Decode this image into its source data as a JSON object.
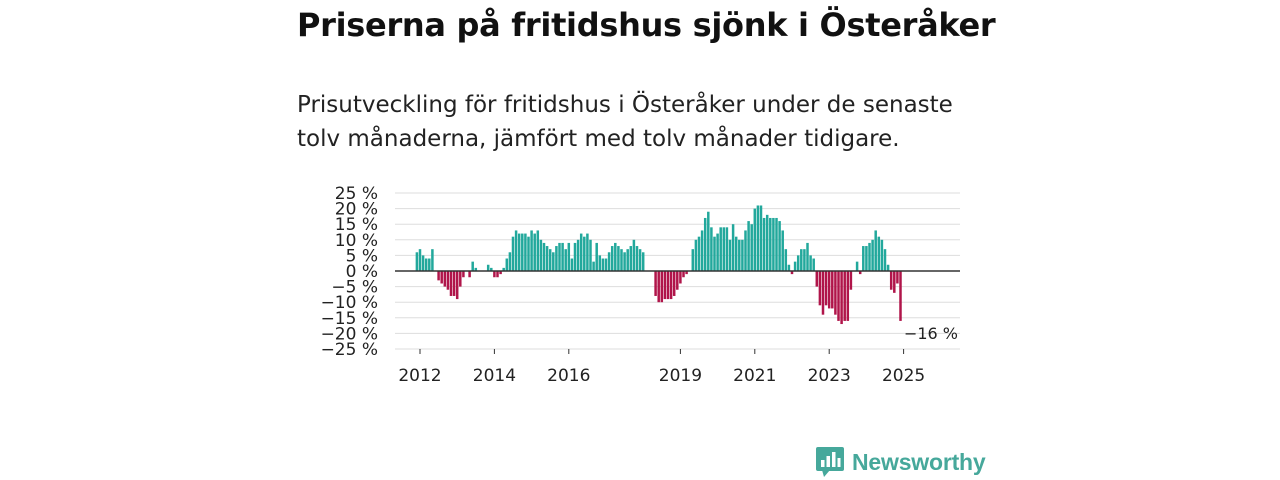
{
  "header": {
    "title": "Priserna på fritidshus sjönk i Österåker",
    "subtitle": "Prisutveckling för fritidshus i Österåker under de senaste tolv månaderna, jämfört med tolv månader tidigare."
  },
  "brand": {
    "name": "Newsworthy",
    "color": "#46a89b",
    "icon": "newsworthy-logo-icon"
  },
  "colors": {
    "positive": "#22a89c",
    "negative": "#b0154a",
    "zero_line": "#333333",
    "grid": "#dddddd"
  },
  "chart_data": {
    "type": "bar",
    "title": "Priserna på fritidshus sjönk i Österåker",
    "xlabel": "",
    "ylabel": "",
    "ylim": [
      -25,
      25
    ],
    "y_ticks": [
      25,
      20,
      15,
      10,
      5,
      0,
      -5,
      -10,
      -15,
      -20,
      -25
    ],
    "y_tick_labels": [
      "25 %",
      "20 %",
      "15 %",
      "10 %",
      "5 %",
      "0 %",
      "−5 %",
      "−10 %",
      "−15 %",
      "−20 %",
      "−25 %"
    ],
    "x_ticks": [
      {
        "year": 2012,
        "label": "2012"
      },
      {
        "year": 2014,
        "label": "2014"
      },
      {
        "year": 2016,
        "label": "2016"
      },
      {
        "year": 2019,
        "label": "2019"
      },
      {
        "year": 2021,
        "label": "2021"
      },
      {
        "year": 2023,
        "label": "2023"
      },
      {
        "year": 2025,
        "label": "2025"
      }
    ],
    "start_year": 2011,
    "start_month": 12,
    "unit": "%",
    "last_value_label": "−16 %",
    "values": [
      6,
      7,
      5,
      4,
      4,
      7,
      null,
      -3,
      -4,
      -5,
      -6,
      -8,
      -8,
      -9,
      -5,
      -2,
      null,
      -2,
      3,
      1,
      null,
      null,
      null,
      2,
      1,
      -2,
      -2,
      -1,
      1,
      4,
      6,
      11,
      13,
      12,
      12,
      12,
      11,
      13,
      12,
      13,
      10,
      9,
      8,
      7,
      6,
      8,
      9,
      9,
      7,
      9,
      4,
      9,
      10,
      12,
      11,
      12,
      10,
      3,
      9,
      5,
      4,
      4,
      6,
      8,
      9,
      8,
      7,
      6,
      7,
      8,
      10,
      8,
      7,
      6,
      null,
      null,
      null,
      -8,
      -10,
      -10,
      -9,
      -9,
      -9,
      -8,
      -6,
      -4,
      -2,
      -1,
      null,
      7,
      10,
      11,
      13,
      17,
      19,
      14,
      11,
      12,
      14,
      14,
      14,
      10,
      15,
      11,
      10,
      10,
      13,
      16,
      15,
      20,
      21,
      21,
      17,
      18,
      17,
      17,
      17,
      16,
      13,
      7,
      2,
      -1,
      3,
      5,
      7,
      7,
      9,
      5,
      4,
      -5,
      -11,
      -14,
      -11,
      -12,
      -12,
      -14,
      -16,
      -17,
      -16,
      -16,
      -6,
      null,
      3,
      -1,
      8,
      8,
      9,
      10,
      13,
      11,
      10,
      7,
      2,
      -6,
      -7,
      -4,
      -16
    ]
  }
}
